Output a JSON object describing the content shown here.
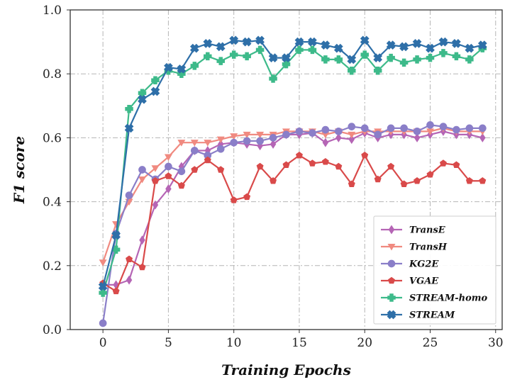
{
  "chart_data": {
    "type": "line",
    "xlabel": "Training Epochs",
    "ylabel": "F1 score",
    "xlim": [
      -2.5,
      30.5
    ],
    "ylim": [
      0,
      1.0
    ],
    "xticks": [
      0,
      5,
      10,
      15,
      20,
      25,
      30
    ],
    "yticks": [
      0.0,
      0.2,
      0.4,
      0.6,
      0.8,
      1.0
    ],
    "xtick_labels": [
      "0",
      "5",
      "10",
      "15",
      "20",
      "25",
      "30"
    ],
    "ytick_labels": [
      "0.0",
      "0.2",
      "0.4",
      "0.6",
      "0.8",
      "1.0"
    ],
    "grid": true,
    "legend_position": "lower-right",
    "x": [
      0,
      1,
      2,
      3,
      4,
      5,
      6,
      7,
      8,
      9,
      10,
      11,
      12,
      13,
      14,
      15,
      16,
      17,
      18,
      19,
      20,
      21,
      22,
      23,
      24,
      25,
      26,
      27,
      28,
      29
    ],
    "series": [
      {
        "name": "TransE",
        "color": "#b565b5",
        "marker": "diamond",
        "values": [
          0.14,
          0.14,
          0.155,
          0.28,
          0.39,
          0.44,
          0.51,
          0.56,
          0.56,
          0.58,
          0.585,
          0.58,
          0.575,
          0.58,
          0.61,
          0.61,
          0.615,
          0.585,
          0.6,
          0.595,
          0.615,
          0.6,
          0.61,
          0.61,
          0.6,
          0.61,
          0.62,
          0.61,
          0.61,
          0.6
        ]
      },
      {
        "name": "TransH",
        "color": "#f08a80",
        "marker": "triangle-down",
        "values": [
          0.21,
          0.33,
          0.4,
          0.47,
          0.505,
          0.54,
          0.585,
          0.585,
          0.585,
          0.595,
          0.605,
          0.61,
          0.61,
          0.61,
          0.62,
          0.62,
          0.62,
          0.61,
          0.62,
          0.61,
          0.62,
          0.62,
          0.62,
          0.62,
          0.62,
          0.62,
          0.63,
          0.62,
          0.62,
          0.62
        ]
      },
      {
        "name": "KG2E",
        "color": "#8a7ec8",
        "marker": "circle",
        "values": [
          0.02,
          0.3,
          0.42,
          0.5,
          0.47,
          0.51,
          0.495,
          0.56,
          0.545,
          0.565,
          0.585,
          0.59,
          0.59,
          0.6,
          0.61,
          0.62,
          0.615,
          0.625,
          0.62,
          0.635,
          0.63,
          0.61,
          0.63,
          0.63,
          0.62,
          0.64,
          0.635,
          0.625,
          0.63,
          0.63
        ]
      },
      {
        "name": "VGAE",
        "color": "#d94a4a",
        "marker": "pentagon",
        "values": [
          0.145,
          0.12,
          0.22,
          0.195,
          0.465,
          0.48,
          0.45,
          0.5,
          0.53,
          0.5,
          0.405,
          0.415,
          0.51,
          0.465,
          0.515,
          0.545,
          0.52,
          0.525,
          0.51,
          0.455,
          0.545,
          0.47,
          0.51,
          0.455,
          0.465,
          0.485,
          0.52,
          0.515,
          0.465,
          0.465
        ]
      },
      {
        "name": "STREAM-homo",
        "color": "#3dba8a",
        "marker": "plus",
        "values": [
          0.115,
          0.25,
          0.69,
          0.74,
          0.78,
          0.81,
          0.8,
          0.825,
          0.855,
          0.84,
          0.86,
          0.855,
          0.875,
          0.785,
          0.83,
          0.875,
          0.875,
          0.845,
          0.845,
          0.81,
          0.86,
          0.81,
          0.85,
          0.835,
          0.845,
          0.85,
          0.865,
          0.855,
          0.845,
          0.88
        ]
      },
      {
        "name": "STREAM",
        "color": "#2e6fa8",
        "marker": "x",
        "values": [
          0.135,
          0.295,
          0.63,
          0.72,
          0.745,
          0.82,
          0.815,
          0.88,
          0.895,
          0.885,
          0.905,
          0.9,
          0.905,
          0.85,
          0.85,
          0.9,
          0.9,
          0.89,
          0.88,
          0.845,
          0.905,
          0.85,
          0.89,
          0.885,
          0.895,
          0.88,
          0.9,
          0.895,
          0.88,
          0.89
        ]
      }
    ]
  }
}
